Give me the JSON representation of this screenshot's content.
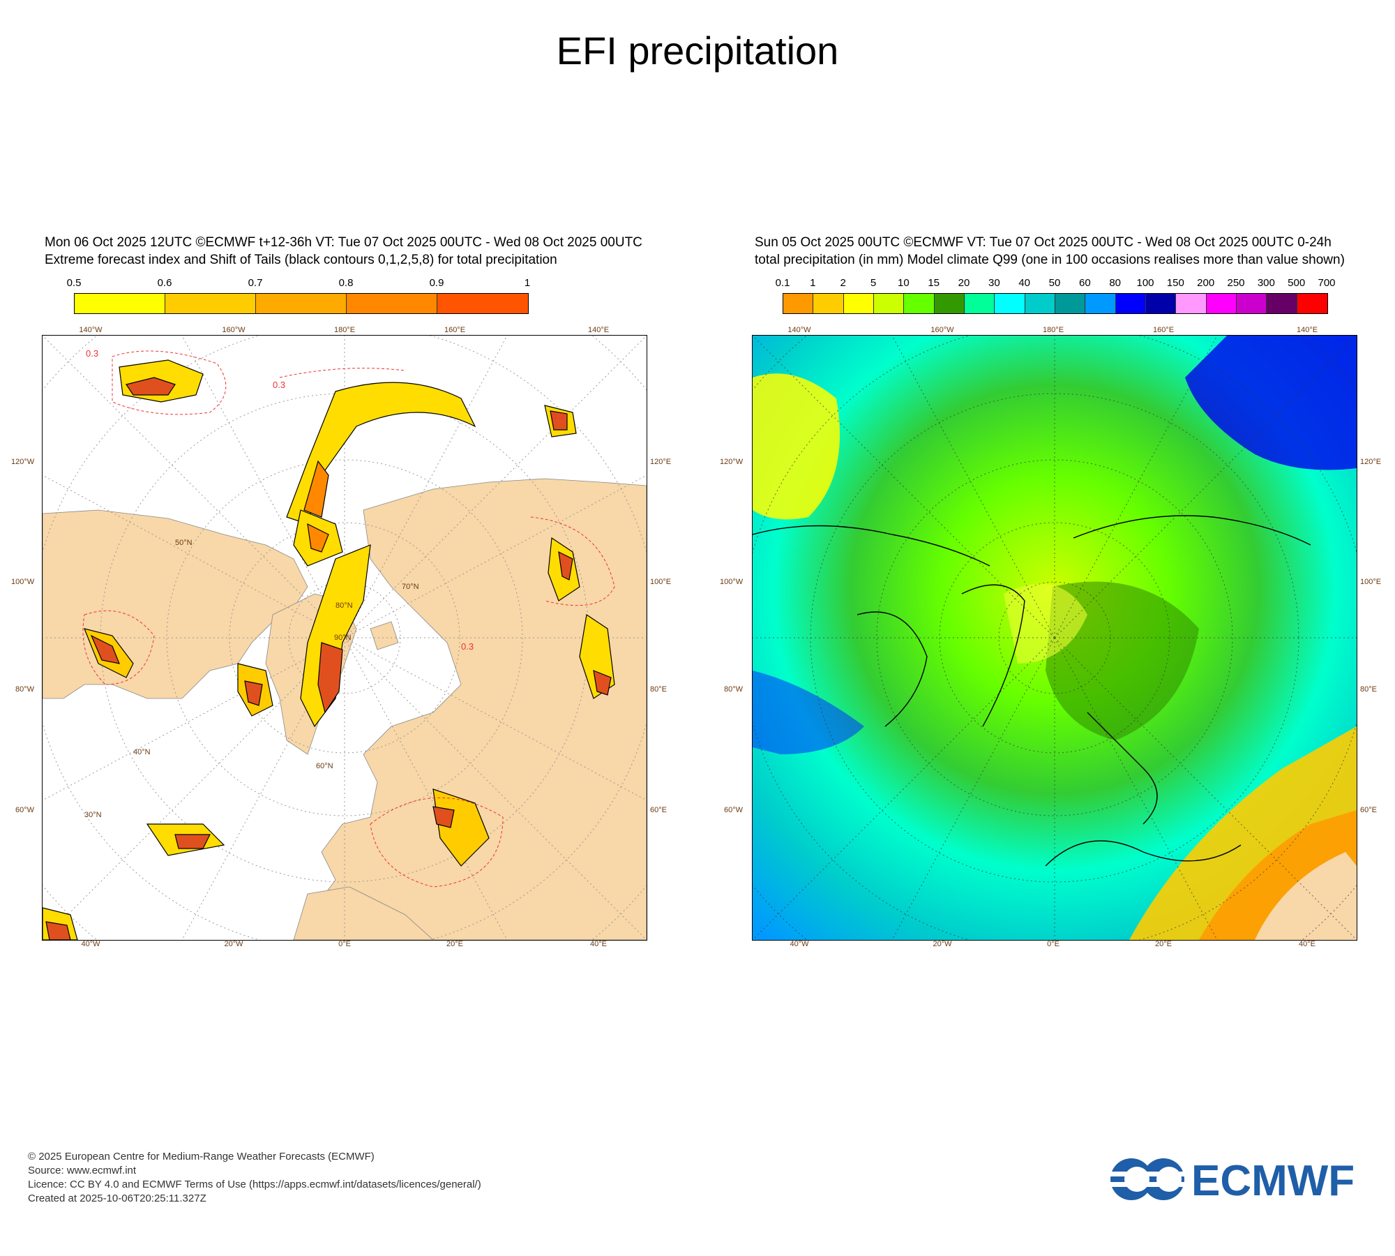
{
  "title": "EFI precipitation",
  "left_panel": {
    "header_line1": "Mon 06 Oct 2025 12UTC ©ECMWF t+12-36h  VT: Tue 07 Oct 2025 00UTC - Wed 08 Oct 2025 00UTC",
    "header_line2": "Extreme forecast index and Shift of Tails (black contours 0,1,2,5,8) for total precipitation",
    "colorbar": {
      "ticks": [
        "0.5",
        "0.6",
        "0.7",
        "0.8",
        "0.9",
        "1"
      ],
      "colors": [
        "#ffff00",
        "#ffcc00",
        "#ffaa00",
        "#ff8800",
        "#ff5500"
      ]
    },
    "contour_label": "0.3"
  },
  "right_panel": {
    "header_line1": "Sun 05 Oct 2025 00UTC ©ECMWF VT: Tue 07 Oct 2025 00UTC - Wed 08 Oct 2025 00UTC   0-24h",
    "header_line2": "total precipitation  (in mm)  Model climate Q99 (one in 100 occasions realises more than value shown)",
    "colorbar": {
      "ticks": [
        "0.1",
        "1",
        "2",
        "5",
        "10",
        "15",
        "20",
        "30",
        "40",
        "50",
        "60",
        "80",
        "100",
        "150",
        "200",
        "250",
        "300",
        "500",
        "700"
      ],
      "colors": [
        "#ff9900",
        "#ffcc00",
        "#ffff00",
        "#ccff00",
        "#66ff00",
        "#339900",
        "#00ff99",
        "#00ffff",
        "#00cccc",
        "#009999",
        "#0099ff",
        "#0000ff",
        "#0000aa",
        "#ff99ff",
        "#ff00ff",
        "#cc00cc",
        "#660066",
        "#ff0000"
      ]
    }
  },
  "map_labels": {
    "top_lon": [
      "140°W",
      "160°W",
      "180°E",
      "160°E",
      "140°E"
    ],
    "bottom_lon": [
      "40°W",
      "20°W",
      "0°E",
      "20°E",
      "40°E"
    ],
    "left_lat": [
      "120°W",
      "100°W",
      "80°W",
      "60°W"
    ],
    "right_lat": [
      "120°E",
      "100°E",
      "80°E",
      "60°E"
    ],
    "parallels": [
      "30°N",
      "40°N",
      "50°N",
      "60°N",
      "70°N",
      "80°N",
      "90°N"
    ]
  },
  "footer": {
    "line1": "© 2025 European Centre for Medium-Range Weather Forecasts (ECMWF)",
    "line2": "Source: www.ecmwf.int",
    "line3": "Licence: CC BY 4.0 and ECMWF Terms of Use (https://apps.ecmwf.int/datasets/licences/general/)",
    "line4": "Created at 2025-10-06T20:25:11.327Z"
  },
  "logo_text": "ECMWF",
  "colors": {
    "land": "#f8d7a8",
    "ocean": "#ffffff",
    "grid": "#999999",
    "label": "#6b3a12",
    "logo": "#1f5ea8"
  }
}
